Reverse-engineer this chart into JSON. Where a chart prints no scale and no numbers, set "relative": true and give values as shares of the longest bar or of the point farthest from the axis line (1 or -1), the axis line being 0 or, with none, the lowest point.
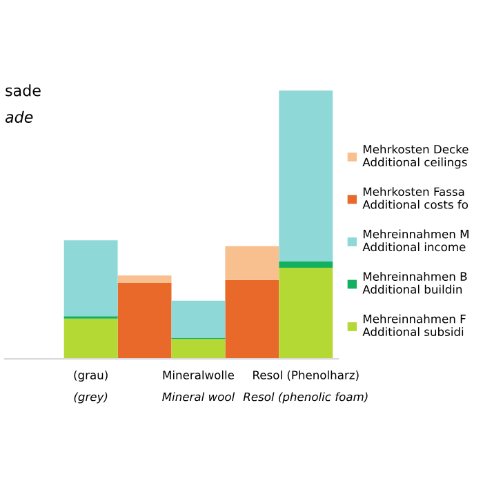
{
  "chart_data": {
    "type": "bar",
    "stacked": true,
    "relative": true,
    "legend": "right",
    "tick_labels": "x",
    "categories": [
      null,
      "(grau)\n(grey)",
      null,
      "Mineralwolle\nMineral wool",
      null,
      "Resol (Phenolharz)\nResol (phenolic foam)"
    ],
    "annotations": [
      "sade",
      "ade"
    ],
    "series": [
      {
        "name": "Mehrkosten Fassa\nAdditional costs fo",
        "color": "#e8692a",
        "values": [
          null,
          null,
          0.283,
          null,
          0.294,
          null
        ]
      },
      {
        "name": "Mehrkosten Decke\nAdditional ceilings",
        "color": "#f8c08f",
        "values": [
          null,
          null,
          0.028,
          null,
          0.126,
          null
        ]
      },
      {
        "name": "Mehreinnahmen F\nAdditional subsidi",
        "color": "#b5d934",
        "values": [
          null,
          0.15,
          null,
          0.074,
          null,
          0.34
        ]
      },
      {
        "name": "Mehreinnahmen B\nAdditional buildin",
        "color": "#13b060",
        "values": [
          null,
          0.009,
          null,
          0.005,
          null,
          0.023
        ]
      },
      {
        "name": "Mehreinnahmen M\nAdditional income",
        "color": "#8fd8d8",
        "values": [
          null,
          0.283,
          null,
          0.138,
          null,
          0.637
        ]
      }
    ]
  }
}
